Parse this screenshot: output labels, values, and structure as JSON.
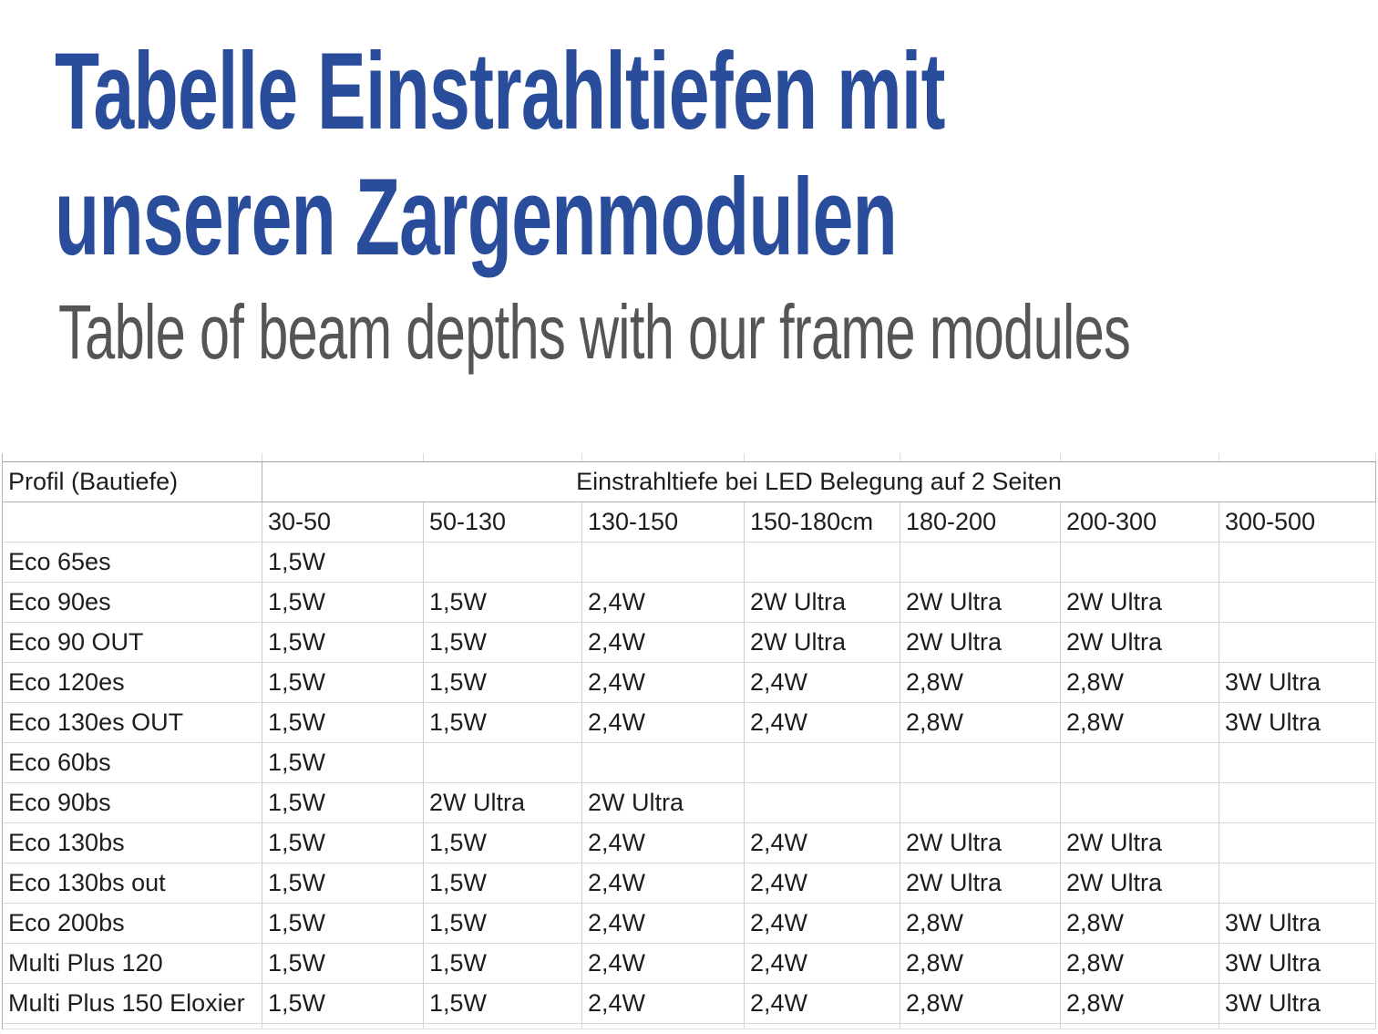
{
  "header": {
    "title_line1": "Tabelle Einstrahltiefen mit",
    "title_line2": "unseren Zargenmodulen",
    "subtitle": "Table of beam depths with our frame modules"
  },
  "colors": {
    "title_blue": "#2a4d9b",
    "subtitle_gray": "#555555",
    "table_text": "#1d1d1d",
    "grid_light": "#d9d9d9",
    "grid_dark": "#9e9e9e"
  },
  "chart_data": {
    "type": "table",
    "corner_header": "Profil (Bautiefe)",
    "group_header": "Einstrahltiefe bei LED Belegung auf 2 Seiten",
    "range_headers": [
      "30-50",
      "50-130",
      "130-150",
      "150-180cm",
      "180-200",
      "200-300",
      "300-500"
    ],
    "rows": [
      {
        "label": "Eco 65es",
        "values": [
          "1,5W",
          "",
          "",
          "",
          "",
          "",
          ""
        ]
      },
      {
        "label": "Eco 90es",
        "values": [
          "1,5W",
          "1,5W",
          "2,4W",
          "2W Ultra",
          "2W Ultra",
          "2W Ultra",
          ""
        ]
      },
      {
        "label": "Eco 90 OUT",
        "values": [
          "1,5W",
          "1,5W",
          "2,4W",
          "2W Ultra",
          "2W Ultra",
          "2W Ultra",
          ""
        ]
      },
      {
        "label": "Eco 120es",
        "values": [
          "1,5W",
          "1,5W",
          "2,4W",
          "2,4W",
          "2,8W",
          "2,8W",
          "3W Ultra"
        ]
      },
      {
        "label": "Eco 130es OUT",
        "values": [
          "1,5W",
          "1,5W",
          "2,4W",
          "2,4W",
          "2,8W",
          "2,8W",
          "3W Ultra"
        ]
      },
      {
        "label": "Eco 60bs",
        "values": [
          "1,5W",
          "",
          "",
          "",
          "",
          "",
          ""
        ]
      },
      {
        "label": "Eco 90bs",
        "values": [
          "1,5W",
          "2W Ultra",
          "2W Ultra",
          "",
          "",
          "",
          ""
        ]
      },
      {
        "label": "Eco 130bs",
        "values": [
          "1,5W",
          "1,5W",
          "2,4W",
          "2,4W",
          "2W Ultra",
          "2W Ultra",
          ""
        ]
      },
      {
        "label": "Eco 130bs out",
        "values": [
          "1,5W",
          "1,5W",
          "2,4W",
          "2,4W",
          "2W Ultra",
          "2W Ultra",
          ""
        ]
      },
      {
        "label": "Eco 200bs",
        "values": [
          "1,5W",
          "1,5W",
          "2,4W",
          "2,4W",
          "2,8W",
          "2,8W",
          "3W Ultra"
        ]
      },
      {
        "label": "Multi Plus 120",
        "values": [
          "1,5W",
          "1,5W",
          "2,4W",
          "2,4W",
          "2,8W",
          "2,8W",
          "3W Ultra"
        ]
      },
      {
        "label": "Multi Plus 150 Eloxier",
        "values": [
          "1,5W",
          "1,5W",
          "2,4W",
          "2,4W",
          "2,8W",
          "2,8W",
          "3W Ultra"
        ]
      }
    ]
  }
}
